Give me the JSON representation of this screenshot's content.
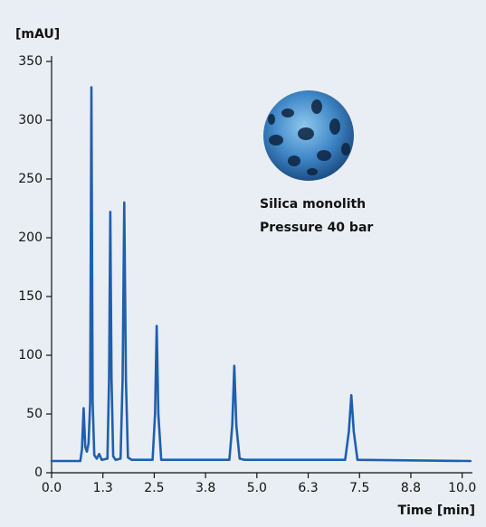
{
  "chart_data": {
    "type": "line",
    "y_label": "[mAU]",
    "x_label": "Time [min]",
    "annotations": [
      "Silica monolith",
      "Pressure 40 bar"
    ],
    "xlim": [
      0,
      10.25
    ],
    "ylim": [
      0,
      350
    ],
    "xticks": [
      {
        "value": 0,
        "label": "0.0"
      },
      {
        "value": 1.25,
        "label": "1.3"
      },
      {
        "value": 2.5,
        "label": "2.5"
      },
      {
        "value": 3.75,
        "label": "3.8"
      },
      {
        "value": 5,
        "label": "5.0"
      },
      {
        "value": 6.25,
        "label": "6.3"
      },
      {
        "value": 7.5,
        "label": "7.5"
      },
      {
        "value": 8.75,
        "label": "8.8"
      },
      {
        "value": 10,
        "label": "10.0"
      }
    ],
    "yticks": [
      0,
      50,
      100,
      150,
      200,
      250,
      300,
      350
    ],
    "grid": false,
    "series": [
      {
        "color": "#1f5fae",
        "x": [
          0,
          0.7,
          0.74,
          0.78,
          0.82,
          0.86,
          0.9,
          0.94,
          0.97,
          1.0,
          1.04,
          1.1,
          1.16,
          1.22,
          1.36,
          1.4,
          1.43,
          1.46,
          1.5,
          1.56,
          1.68,
          1.73,
          1.77,
          1.81,
          1.86,
          1.95,
          2.46,
          2.52,
          2.56,
          2.6,
          2.67,
          4.33,
          4.4,
          4.45,
          4.5,
          4.58,
          4.7,
          7.15,
          7.24,
          7.3,
          7.36,
          7.45,
          10.2
        ],
        "values": [
          10,
          10,
          20,
          55,
          22,
          18,
          25,
          60,
          328,
          60,
          15,
          12,
          16,
          11,
          12,
          80,
          222,
          80,
          14,
          11,
          12,
          80,
          230,
          80,
          13,
          11,
          11,
          50,
          125,
          50,
          11,
          11,
          40,
          91,
          40,
          12,
          11,
          11,
          35,
          66,
          35,
          11,
          10
        ]
      }
    ]
  }
}
